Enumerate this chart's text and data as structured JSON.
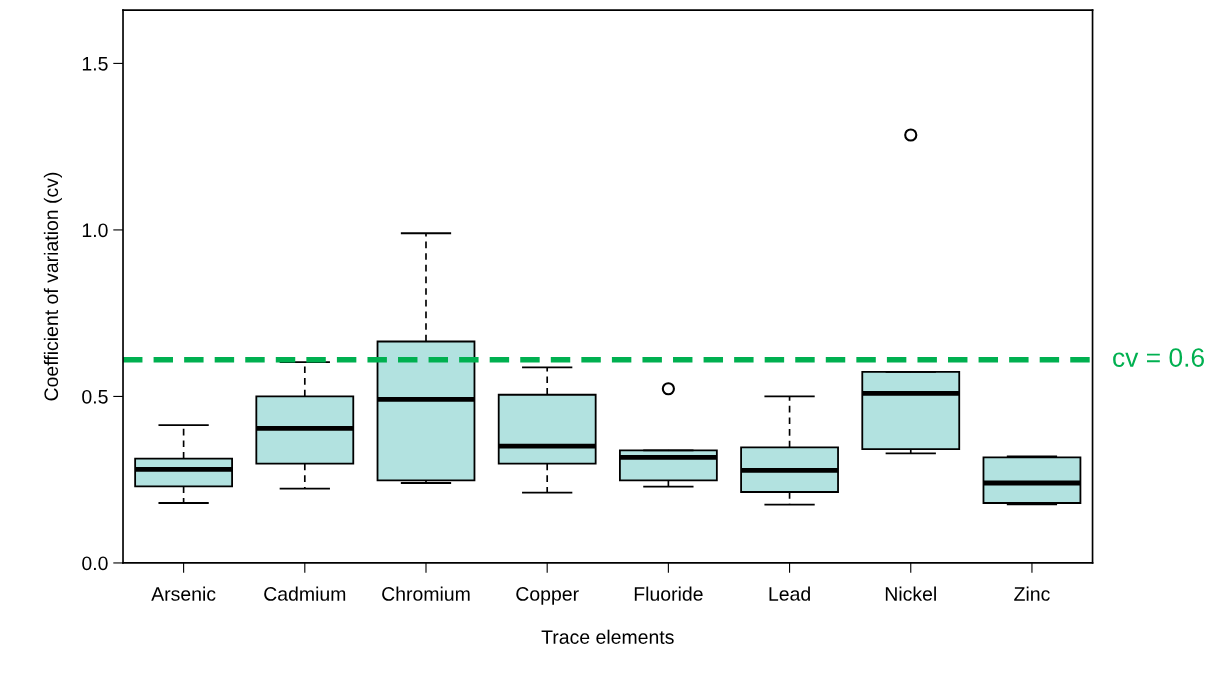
{
  "chart_data": {
    "type": "box",
    "xlabel": "Trace elements",
    "ylabel": "Coefficient of variation (cv)",
    "categories": [
      "Arsenic",
      "Cadmium",
      "Chromium",
      "Copper",
      "Fluoride",
      "Lead",
      "Nickel",
      "Zinc"
    ],
    "color": "#b2e2e0",
    "boxes": [
      {
        "low": 0.18,
        "q1": 0.23,
        "median": 0.281,
        "q3": 0.313,
        "high": 0.414
      },
      {
        "low": 0.223,
        "q1": 0.298,
        "median": 0.404,
        "q3": 0.5,
        "high": 0.603
      },
      {
        "low": 0.24,
        "q1": 0.248,
        "median": 0.491,
        "q3": 0.665,
        "high": 0.99
      },
      {
        "low": 0.211,
        "q1": 0.298,
        "median": 0.351,
        "q3": 0.505,
        "high": 0.587
      },
      {
        "low": 0.229,
        "q1": 0.248,
        "median": 0.317,
        "q3": 0.338,
        "high": 0.338,
        "outliers": [
          0.523
        ]
      },
      {
        "low": 0.175,
        "q1": 0.213,
        "median": 0.278,
        "q3": 0.347,
        "high": 0.5
      },
      {
        "low": 0.329,
        "q1": 0.342,
        "median": 0.509,
        "q3": 0.574,
        "high": 0.574,
        "outliers": [
          1.285
        ]
      },
      {
        "low": 0.176,
        "q1": 0.18,
        "median": 0.24,
        "q3": 0.317,
        "high": 0.32
      }
    ],
    "ylim": [
      0,
      1.66
    ],
    "yticks": [
      {
        "value": 0,
        "label": "0.0"
      },
      0.5,
      {
        "value": 1,
        "label": "1.0"
      },
      1.5
    ],
    "ref_lines": [
      {
        "axis": "y",
        "value": 0.61,
        "label": "cv = 0.6",
        "color": "#00b050",
        "line_style": "dashed"
      }
    ],
    "grid": false,
    "legend": false
  }
}
